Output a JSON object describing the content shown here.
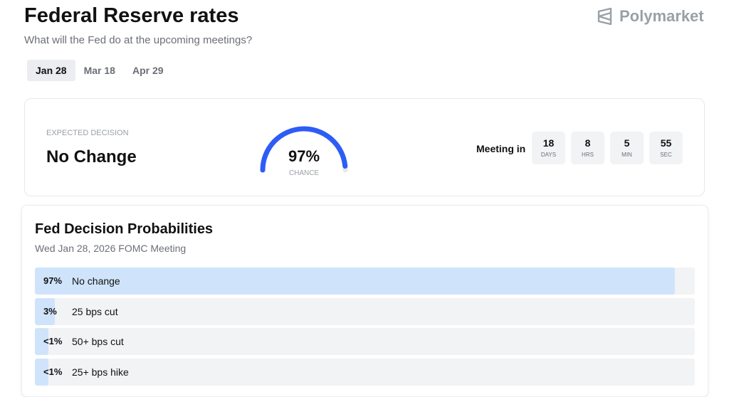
{
  "header": {
    "title": "Federal Reserve rates",
    "subtitle": "What will the Fed do at the upcoming meetings?",
    "brand": "Polymarket"
  },
  "tabs": {
    "items": [
      "Jan 28",
      "Mar 18",
      "Apr 29"
    ],
    "active": 0
  },
  "summary": {
    "label": "EXPECTED DECISION",
    "decision": "No Change",
    "chance": {
      "value": 97,
      "label": "97%",
      "caption": "CHANCE"
    },
    "countdown": {
      "label": "Meeting in",
      "units": [
        {
          "value": 18,
          "unit": "DAYS"
        },
        {
          "value": 8,
          "unit": "HRS"
        },
        {
          "value": 5,
          "unit": "MIN"
        },
        {
          "value": 55,
          "unit": "SEC"
        }
      ]
    }
  },
  "probabilities": {
    "title": "Fed Decision Probabilities",
    "subtitle": "Wed Jan 28, 2026 FOMC Meeting",
    "rows": [
      {
        "value": 97,
        "value_label": "97%",
        "name": "No change"
      },
      {
        "value": 3,
        "value_label": "3%",
        "name": "25 bps cut"
      },
      {
        "value": 1,
        "value_label": "<1%",
        "name": "50+ bps cut"
      },
      {
        "value": 1,
        "value_label": "<1%",
        "name": "25+ bps hike"
      }
    ]
  }
}
